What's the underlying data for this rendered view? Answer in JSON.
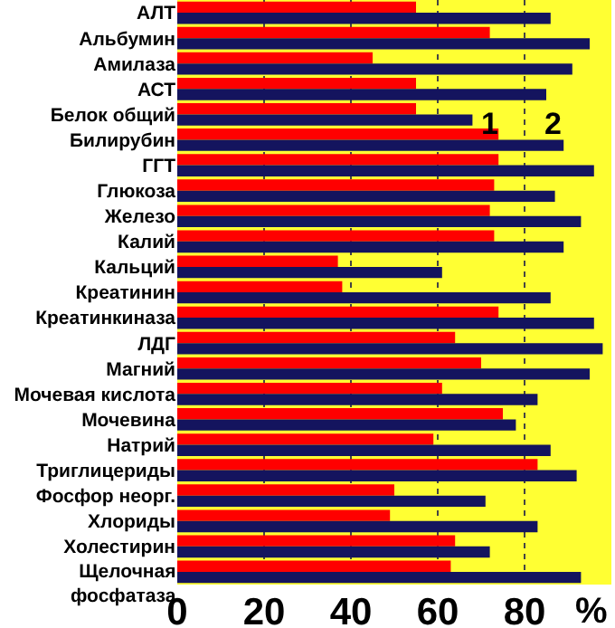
{
  "chart_data": {
    "type": "bar",
    "orientation": "horizontal",
    "xlabel": "%",
    "categories": [
      "АЛТ",
      "Альбумин",
      "Амилаза",
      "АСТ",
      "Белок общий",
      "Билирубин",
      "ГГТ",
      "Глюкоза",
      "Железо",
      "Калий",
      "Кальций",
      "Креатинин",
      "Креатинкиназа",
      "ЛДГ",
      "Магний",
      "Мочевая кислота",
      "Мочевина",
      "Натрий",
      "Триглицериды",
      "Фосфор неорг.",
      "Хлориды",
      "Холестирин",
      "Щелочная\nфосфатаза"
    ],
    "series": [
      {
        "name": "1",
        "color": "#ff0000",
        "values": [
          55,
          72,
          45,
          55,
          55,
          74,
          74,
          73,
          72,
          73,
          37,
          38,
          74,
          64,
          70,
          61,
          75,
          59,
          83,
          50,
          49,
          64,
          63
        ]
      },
      {
        "name": "2",
        "color": "#14145e",
        "values": [
          86,
          95,
          91,
          85,
          68,
          89,
          96,
          87,
          93,
          89,
          61,
          86,
          96,
          98,
          95,
          83,
          78,
          86,
          92,
          71,
          83,
          72,
          93
        ]
      }
    ],
    "bands": [
      {
        "axis": "x",
        "from": 0,
        "to": 100,
        "color": "#ffff33"
      }
    ],
    "xlim": [
      0,
      100
    ],
    "xticks": [
      0,
      20,
      40,
      60,
      80
    ],
    "grid": "x",
    "legend": false
  }
}
